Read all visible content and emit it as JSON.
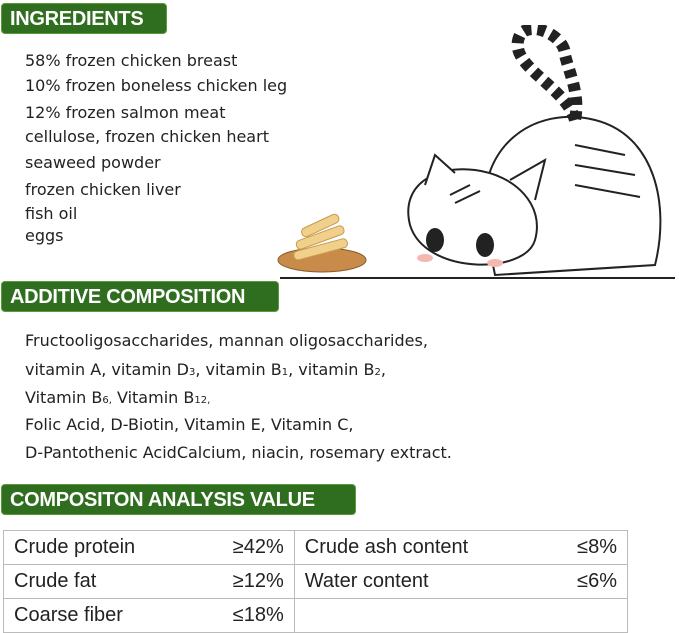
{
  "ingredients": {
    "title": "INGREDIENTS",
    "items": [
      "58% frozen chicken breast",
      "10% frozen boneless chicken leg",
      "12% frozen salmon meat",
      "cellulose, frozen chicken heart",
      "seaweed powder",
      "frozen chicken liver",
      "fish oil",
      "eggs"
    ]
  },
  "additive": {
    "title": "ADDITIVE COMPOSITION",
    "line1": "Fructooligosaccharides, mannan oligosaccharides,",
    "line2": {
      "a": "vitamin A, vitamin D",
      "a_sub": "3",
      "b": ",  vitamin B",
      "b_sub": "1",
      "c": ",  vitamin B",
      "c_sub": "2",
      "d": ","
    },
    "line3": {
      "a": "Vitamin B",
      "a_sub": "6,",
      "b": " Vitamin B",
      "b_sub": "12,"
    },
    "line4": "Folic Acid, D-Biotin, Vitamin E, Vitamin C,",
    "line5": "D-Pantothenic AcidCalcium, niacin, rosemary extract."
  },
  "analysis": {
    "title": "COMPOSITON ANALYSIS VALUE",
    "rows": [
      {
        "k1": "Crude protein",
        "v1": "≥42%",
        "k2": "Crude ash content",
        "v2": "≤8%"
      },
      {
        "k1": "Crude fat",
        "v1": "≥12%",
        "k2": "Water content",
        "v2": "≤6%"
      },
      {
        "k1": "Coarse fiber",
        "v1": "≤18%",
        "k2": "",
        "v2": ""
      }
    ]
  },
  "colors": {
    "badge": "#2f6e1f",
    "text": "#222222"
  }
}
